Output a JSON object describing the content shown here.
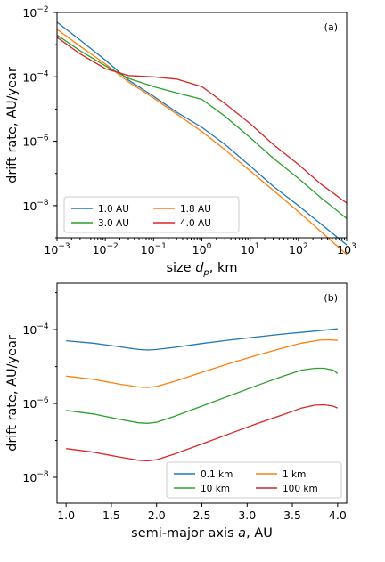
{
  "chart_data": [
    {
      "type": "line",
      "panel_label": "(a)",
      "xlabel": "size $d_p$, km",
      "xlabel_parts": {
        "pre": "size ",
        "var": "d",
        "sub": "p",
        "post": ", km"
      },
      "ylabel": "drift rate, AU/year",
      "xscale": "log",
      "yscale": "log",
      "xlim": [
        0.001,
        1000
      ],
      "ylim": [
        1e-09,
        0.01
      ],
      "xticks": [
        {
          "value": 0.001,
          "mant": "10",
          "exp": "−3"
        },
        {
          "value": 0.01,
          "mant": "10",
          "exp": "−2"
        },
        {
          "value": 0.1,
          "mant": "10",
          "exp": "−1"
        },
        {
          "value": 1,
          "mant": "10",
          "exp": "0"
        },
        {
          "value": 10,
          "mant": "10",
          "exp": "1"
        },
        {
          "value": 100,
          "mant": "10",
          "exp": "2"
        },
        {
          "value": 1000,
          "mant": "10",
          "exp": "3"
        }
      ],
      "yticks": [
        {
          "value": 1e-08,
          "mant": "10",
          "exp": "−8"
        },
        {
          "value": 1e-06,
          "mant": "10",
          "exp": "−6"
        },
        {
          "value": 0.0001,
          "mant": "10",
          "exp": "−4"
        },
        {
          "value": 0.01,
          "mant": "10",
          "exp": "−2"
        }
      ],
      "grid": false,
      "legend_position": "lower-left",
      "series": [
        {
          "name": "1.0 AU",
          "color": "#1f77b4",
          "x": [
            0.001,
            0.003,
            0.01,
            0.03,
            0.1,
            0.3,
            1,
            3,
            10,
            30,
            100,
            300,
            1000
          ],
          "y": [
            0.005,
            0.0014,
            0.00033,
            8e-05,
            2.5e-05,
            8e-06,
            2.7e-06,
            8e-07,
            1.7e-07,
            4e-08,
            1e-08,
            2.6e-09,
            6e-10
          ]
        },
        {
          "name": "1.8 AU",
          "color": "#ff7f0e",
          "x": [
            0.001,
            0.003,
            0.01,
            0.03,
            0.1,
            0.3,
            1,
            3,
            10,
            30,
            100,
            300,
            1000
          ],
          "y": [
            0.003,
            0.0009,
            0.00025,
            7e-05,
            2.2e-05,
            7e-06,
            2e-06,
            5.5e-07,
            1.2e-07,
            3e-08,
            6.5e-09,
            1.5e-09,
            3e-10
          ]
        },
        {
          "name": "3.0 AU",
          "color": "#2ca02c",
          "x": [
            0.001,
            0.003,
            0.01,
            0.03,
            0.1,
            0.3,
            1,
            3,
            10,
            30,
            100,
            300,
            1000
          ],
          "y": [
            0.002,
            0.00065,
            0.00022,
            9e-05,
            5e-05,
            3.2e-05,
            2e-05,
            6e-06,
            1.3e-06,
            3e-07,
            7e-08,
            1.7e-08,
            4e-09
          ]
        },
        {
          "name": "4.0 AU",
          "color": "#d62728",
          "x": [
            0.001,
            0.003,
            0.01,
            0.03,
            0.1,
            0.3,
            1,
            3,
            10,
            30,
            100,
            300,
            1000
          ],
          "y": [
            0.0017,
            0.00052,
            0.00018,
            0.00011,
            0.0001,
            8.5e-05,
            5e-05,
            1.5e-05,
            3.5e-06,
            8e-07,
            1.9e-07,
            4.5e-08,
            1.2e-08
          ]
        }
      ]
    },
    {
      "type": "line",
      "panel_label": "(b)",
      "xlabel": "semi-major axis $a$, AU",
      "xlabel_parts": {
        "pre": "semi-major axis ",
        "var": "a",
        "sub": "",
        "post": ", AU"
      },
      "ylabel": "drift rate, AU/year",
      "xscale": "linear",
      "yscale": "log",
      "xlim": [
        0.9,
        4.1
      ],
      "ylim": [
        2e-09,
        0.0018
      ],
      "xticks": [
        {
          "value": 1.0,
          "label": "1.0"
        },
        {
          "value": 1.5,
          "label": "1.5"
        },
        {
          "value": 2.0,
          "label": "2.0"
        },
        {
          "value": 2.5,
          "label": "2.5"
        },
        {
          "value": 3.0,
          "label": "3.0"
        },
        {
          "value": 3.5,
          "label": "3.5"
        },
        {
          "value": 4.0,
          "label": "4.0"
        }
      ],
      "yticks": [
        {
          "value": 1e-08,
          "mant": "10",
          "exp": "−8"
        },
        {
          "value": 1e-06,
          "mant": "10",
          "exp": "−6"
        },
        {
          "value": 0.0001,
          "mant": "10",
          "exp": "−4"
        }
      ],
      "grid": false,
      "legend_position": "lower-right",
      "series": [
        {
          "name": "0.1 km",
          "color": "#1f77b4",
          "x": [
            1.0,
            1.3,
            1.6,
            1.8,
            1.9,
            2.0,
            2.2,
            2.5,
            2.8,
            3.1,
            3.4,
            3.7,
            4.0
          ],
          "y": [
            5e-05,
            4.3e-05,
            3.4e-05,
            2.9e-05,
            2.8e-05,
            2.9e-05,
            3.3e-05,
            4.2e-05,
            5.2e-05,
            6.3e-05,
            7.6e-05,
            8.9e-05,
            0.000105
          ]
        },
        {
          "name": "1 km",
          "color": "#ff7f0e",
          "x": [
            1.0,
            1.3,
            1.6,
            1.8,
            1.9,
            2.0,
            2.2,
            2.5,
            2.8,
            3.1,
            3.4,
            3.6,
            3.8,
            3.9,
            4.0
          ],
          "y": [
            5.5e-06,
            4.5e-06,
            3.3e-06,
            2.8e-06,
            2.7e-06,
            2.9e-06,
            4e-06,
            7e-06,
            1.2e-05,
            2e-05,
            3.2e-05,
            4.3e-05,
            5.2e-05,
            5.3e-05,
            5.1e-05
          ]
        },
        {
          "name": "10 km",
          "color": "#2ca02c",
          "x": [
            1.0,
            1.3,
            1.6,
            1.8,
            1.9,
            2.0,
            2.2,
            2.5,
            2.8,
            3.1,
            3.4,
            3.6,
            3.75,
            3.85,
            3.95,
            4.0
          ],
          "y": [
            6.5e-07,
            5.2e-07,
            3.7e-07,
            3e-07,
            2.9e-07,
            3.1e-07,
            4.5e-07,
            8.5e-07,
            1.6e-06,
            3e-06,
            5.5e-06,
            8e-06,
            9e-06,
            9e-06,
            8e-06,
            6.5e-06
          ]
        },
        {
          "name": "100 km",
          "color": "#d62728",
          "x": [
            1.0,
            1.3,
            1.6,
            1.8,
            1.9,
            2.0,
            2.2,
            2.5,
            2.8,
            3.1,
            3.4,
            3.6,
            3.75,
            3.85,
            3.95,
            4.0
          ],
          "y": [
            6e-08,
            4.8e-08,
            3.5e-08,
            2.9e-08,
            2.8e-08,
            3e-08,
            4.3e-08,
            8e-08,
            1.5e-07,
            2.8e-07,
            5e-07,
            7.5e-07,
            9e-07,
            9.2e-07,
            8.5e-07,
            7.5e-07
          ]
        }
      ]
    }
  ]
}
